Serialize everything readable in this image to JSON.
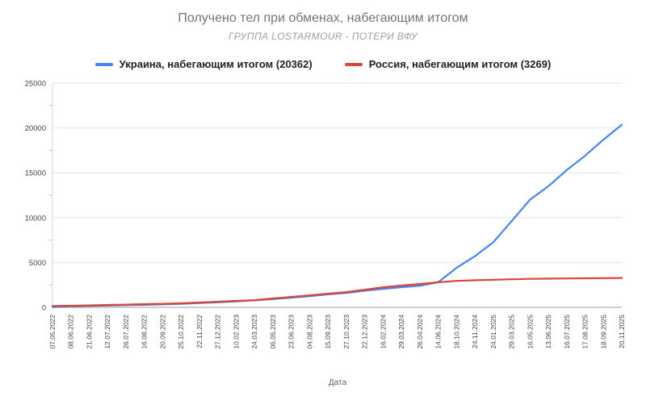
{
  "header": {
    "title": "Получено тел при обменах, набегающим итогом",
    "subtitle": "ГРУППА LOSTARMOUR - ПОТЕРИ ВФУ"
  },
  "chart_data": {
    "type": "line",
    "title": "Получено тел при обменах, набегающим итогом",
    "subtitle": "ГРУППА LOSTARMOUR - ПОТЕРИ ВФУ",
    "xlabel": "Дата",
    "ylabel": "",
    "ylim": [
      0,
      25000
    ],
    "yticks": [
      0,
      5000,
      10000,
      15000,
      20000,
      25000
    ],
    "grid": true,
    "legend_position": "top",
    "colors": {
      "ukraine": "#4285f4",
      "russia": "#db4437"
    },
    "categories": [
      "07.05.2022",
      "08.06.2022",
      "21.06.2022",
      "12.07.2022",
      "26.07.2022",
      "16.08.2022",
      "20.09.2022",
      "25.10.2022",
      "22.11.2022",
      "27.12.2022",
      "10.02.2023",
      "24.03.2023",
      "05.05.2023",
      "23.06.2023",
      "04.08.2023",
      "15.09.2023",
      "27.10.2023",
      "22.12.2023",
      "16.02.2024",
      "29.03.2024",
      "26.04.2024",
      "14.06.2024",
      "18.10.2024",
      "24.11.2024",
      "24.01.2025",
      "29.03.2025",
      "16.05.2025",
      "13.06.2025",
      "16.07.2025",
      "17.08.2025",
      "18.09.2025",
      "20.11.2025"
    ],
    "series": [
      {
        "name": "Украина, набегающим итогом (20362)",
        "color": "#4285f4",
        "final_value": 20362,
        "values": [
          30,
          120,
          160,
          200,
          240,
          280,
          330,
          400,
          480,
          560,
          660,
          780,
          920,
          1080,
          1250,
          1450,
          1600,
          1850,
          2050,
          2250,
          2400,
          2800,
          4400,
          5700,
          7250,
          9600,
          12000,
          13500,
          15300,
          16900,
          18700,
          20362
        ]
      },
      {
        "name": "Россия, набегающим итогом (3269)",
        "color": "#db4437",
        "final_value": 3269,
        "values": [
          150,
          180,
          220,
          270,
          310,
          360,
          400,
          450,
          540,
          630,
          720,
          800,
          990,
          1160,
          1340,
          1520,
          1700,
          1970,
          2240,
          2450,
          2600,
          2800,
          2950,
          3020,
          3080,
          3130,
          3170,
          3200,
          3220,
          3240,
          3255,
          3269
        ]
      }
    ]
  }
}
